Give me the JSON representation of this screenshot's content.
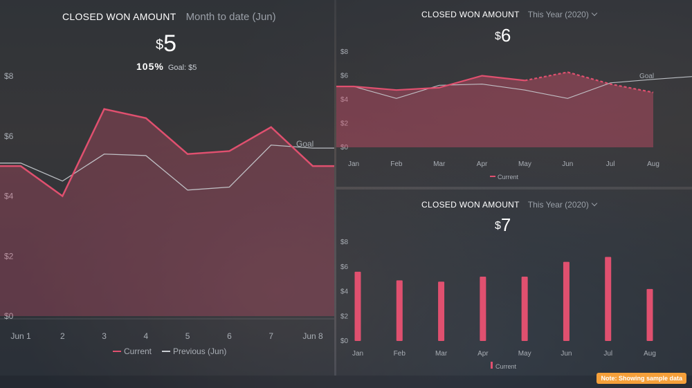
{
  "widgets": {
    "left": {
      "title": "CLOSED WON AMOUNT",
      "period": "Month to date (Jun)",
      "currency": "$",
      "value": "5",
      "percent": "105%",
      "goal_label": "Goal: $5"
    },
    "top_right": {
      "title": "CLOSED WON AMOUNT",
      "period": "This Year (2020)",
      "currency": "$",
      "value": "6"
    },
    "bottom_right": {
      "title": "CLOSED WON AMOUNT",
      "period": "This Year (2020)",
      "currency": "$",
      "value": "7"
    }
  },
  "note": "Note: Showing sample data",
  "colors": {
    "current": "#e0506f",
    "previous": "#c9cdd2",
    "goal": "#c9cdd2",
    "bar": "#e0506f"
  },
  "chart_data": [
    {
      "type": "line",
      "x": [
        "Jun 1",
        "2",
        "3",
        "4",
        "5",
        "6",
        "7",
        "Jun 8"
      ],
      "ylim": [
        0,
        8
      ],
      "yticks": [
        "$0",
        "$2",
        "$4",
        "$6",
        "$8"
      ],
      "series": [
        {
          "name": "Current",
          "values": [
            5.0,
            4.0,
            6.9,
            6.6,
            5.4,
            5.5,
            6.3,
            5.0
          ]
        },
        {
          "name": "Previous (Jun)",
          "values": [
            5.1,
            4.5,
            5.4,
            5.35,
            4.2,
            4.3,
            5.7,
            5.6
          ]
        }
      ],
      "goal": {
        "label": "Goal",
        "from": [
          5.3,
          0
        ],
        "to": [
          5.7,
          6.6
        ]
      }
    },
    {
      "type": "area",
      "x": [
        "Jan",
        "Feb",
        "Mar",
        "Apr",
        "May",
        "Jun",
        "Jul",
        "Aug"
      ],
      "ylim": [
        0,
        8
      ],
      "yticks": [
        "$0",
        "$2",
        "$4",
        "$6",
        "$8"
      ],
      "series": [
        {
          "name": "Current",
          "values": [
            5.1,
            4.8,
            5.0,
            6.0,
            5.6,
            6.3,
            5.3,
            4.6
          ],
          "actual_until_index": 4
        },
        {
          "values": [
            5.1,
            4.1,
            5.2,
            5.3,
            4.8,
            4.1,
            5.4,
            5.7
          ]
        }
      ],
      "goal": {
        "label": "Goal",
        "from": [
          5.5,
          6.2
        ],
        "to": [
          6.0,
          8.0
        ]
      }
    },
    {
      "type": "bar",
      "categories": [
        "Jan",
        "Feb",
        "Mar",
        "Apr",
        "May",
        "Jun",
        "Jul",
        "Aug"
      ],
      "ylim": [
        0,
        8
      ],
      "yticks": [
        "$0",
        "$2",
        "$4",
        "$6",
        "$8"
      ],
      "series": [
        {
          "name": "Current",
          "values": [
            5.6,
            4.9,
            4.8,
            5.2,
            5.2,
            6.4,
            6.8,
            4.2
          ]
        }
      ]
    }
  ]
}
